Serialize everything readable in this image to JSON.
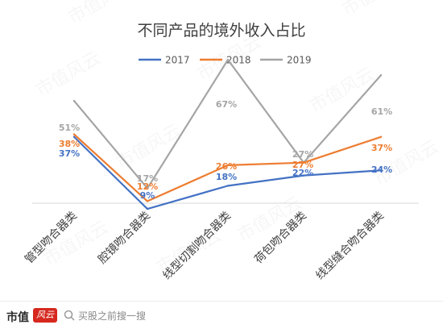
{
  "chart_data": {
    "type": "line",
    "title": "不同产品的境外收入占比",
    "categories": [
      "管型吻合器类",
      "腔镜吻合器类",
      "线型切割吻合器类",
      "荷包吻合器类",
      "线型缝合吻合器类"
    ],
    "series": [
      {
        "name": "2017",
        "color": "#4472c4",
        "values": [
          37,
          9,
          18,
          22,
          24
        ]
      },
      {
        "name": "2018",
        "color": "#ed7d31",
        "values": [
          38,
          12,
          26,
          27,
          37
        ]
      },
      {
        "name": "2019",
        "color": "#a5a5a5",
        "values": [
          51,
          17,
          67,
          27,
          61
        ]
      }
    ],
    "data_labels": {
      "2017": [
        "37%",
        "9%",
        "18%",
        "22%",
        "24%"
      ],
      "2018": [
        "38%",
        "12%",
        "26%",
        "27%",
        "37%"
      ],
      "2019": [
        "51%",
        "17%",
        "67%",
        "27%",
        "61%"
      ]
    },
    "legend_position": "top",
    "grid": false,
    "y_axis_visible": false
  },
  "footer": {
    "brand": "市值",
    "brand_mark": "风云",
    "search_hint": "买股之前搜一搜"
  },
  "watermark": "市值风云"
}
